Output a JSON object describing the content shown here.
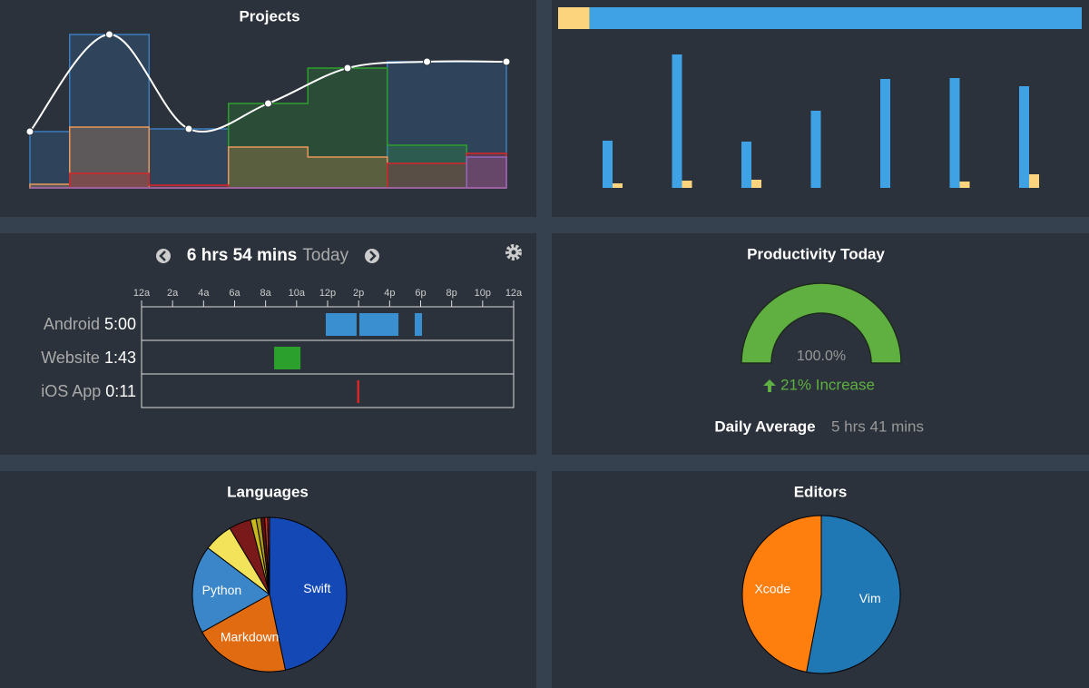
{
  "projects": {
    "title": "Projects",
    "total": [
      3.1,
      8.45,
      3.25,
      4.65,
      6.6,
      6.95,
      6.95
    ],
    "series": [
      {
        "color": "#3b7dbd",
        "values": [
          3.1,
          8.45,
          3.25,
          0,
          0,
          6.95,
          6.95
        ]
      },
      {
        "color": "#2ca02c",
        "values": [
          0,
          0,
          0,
          4.65,
          6.6,
          2.35,
          0
        ]
      },
      {
        "color": "#e8995a",
        "values": [
          0.2,
          3.35,
          0,
          2.25,
          1.7,
          0,
          0
        ]
      },
      {
        "color": "#d62728",
        "values": [
          0,
          0.8,
          0.15,
          0,
          0,
          1.35,
          1.9
        ]
      },
      {
        "color": "#9467bd",
        "values": [
          0,
          0,
          0,
          0,
          0,
          0,
          1.7
        ]
      }
    ]
  },
  "activity": {
    "share": [
      {
        "color": "#fdd47e",
        "value": 6
      },
      {
        "color": "#3ea2e5",
        "value": 94
      }
    ],
    "series": [
      {
        "color": "#3ea2e5",
        "values": [
          2.6,
          7.35,
          2.55,
          4.25,
          6.0,
          6.05,
          5.6
        ]
      },
      {
        "color": "#fdd47e",
        "values": [
          0.25,
          0.4,
          0.45,
          0,
          0,
          0.35,
          0.75
        ]
      }
    ]
  },
  "timeline": {
    "total": "6 hrs 54 mins",
    "period": "Today",
    "ticks": [
      {
        "value": 0,
        "label": "12a"
      },
      {
        "value": 2,
        "label": "2a"
      },
      {
        "value": 4,
        "label": "4a"
      },
      {
        "value": 6,
        "label": "6a"
      },
      {
        "value": 8,
        "label": "8a"
      },
      {
        "value": 10,
        "label": "10a"
      },
      {
        "value": 12,
        "label": "12p"
      },
      {
        "value": 14,
        "label": "2p"
      },
      {
        "value": 16,
        "label": "4p"
      },
      {
        "value": 18,
        "label": "6p"
      },
      {
        "value": 20,
        "label": "8p"
      },
      {
        "value": 22,
        "label": "10p"
      },
      {
        "value": 24,
        "label": "12a"
      }
    ],
    "rows": [
      {
        "name": "Android",
        "duration": "5:00",
        "color": "#3a8fd0",
        "segments": [
          [
            11.88,
            13.87
          ],
          [
            14.05,
            16.57
          ],
          [
            17.62,
            18.09
          ]
        ]
      },
      {
        "name": "Website",
        "duration": "1:43",
        "color": "#2ca02c",
        "segments": [
          [
            8.55,
            10.25
          ]
        ]
      },
      {
        "name": "iOS App",
        "duration": "0:11",
        "color": "#d62728",
        "segments": [
          [
            13.9,
            14.05
          ]
        ]
      }
    ]
  },
  "productivity": {
    "title": "Productivity Today",
    "value": 100,
    "value_label": "100.0%",
    "change": "21% Increase",
    "average_label": "Daily Average",
    "average": "5 hrs 41 mins"
  },
  "languages": {
    "title": "Languages",
    "values": [
      46.7,
      20.2,
      18.4,
      6.1,
      4.6,
      1.2,
      1.0,
      0.8,
      0.6,
      0.4
    ],
    "labels": [
      "Swift",
      "Markdown",
      "Python",
      null,
      null,
      null,
      null,
      null,
      null,
      null
    ],
    "colors": [
      "#1448b4",
      "#e06b10",
      "#3a86c8",
      "#f2e35a",
      "#7a1919",
      "#c8b820",
      "#a89a20",
      "#5a1010",
      "#d03020",
      "#8a2a2a"
    ]
  },
  "editors": {
    "title": "Editors",
    "values": [
      53,
      47
    ],
    "labels": [
      "Vim",
      "Xcode"
    ],
    "colors": [
      "#1f77b4",
      "#ff7f0e"
    ]
  }
}
